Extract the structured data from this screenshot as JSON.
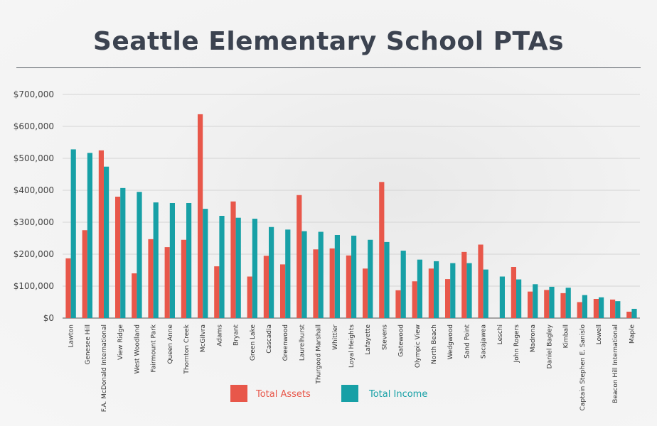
{
  "chart_data": {
    "type": "bar",
    "title": "Seattle Elementary School PTAs",
    "categories": [
      "Lawton",
      "Genesee Hill",
      "F.A. McDonald International",
      "View Ridge",
      "West Woodland",
      "Fairmount Park",
      "Queen Anne",
      "Thornton Creek",
      "McGilvra",
      "Adams",
      "Bryant",
      "Green Lake",
      "Cascadia",
      "Greenwood",
      "Laurelhurst",
      "Thurgood Marshall",
      "Whittier",
      "Loyal Heights",
      "Lafayette",
      "Stevens",
      "Gatewood",
      "Olympic View",
      "North Beach",
      "Wedgwood",
      "Sand Point",
      "Sacajawea",
      "Leschi",
      "John Rogers",
      "Madrona",
      "Daniel Bagley",
      "Kimball",
      "Captain Stephen E. Sanislo",
      "Lowell",
      "Beacon Hill International",
      "Maple"
    ],
    "series": [
      {
        "name": "Total Assets",
        "color": "#e8574a",
        "values": [
          187000,
          275000,
          525000,
          380000,
          140000,
          247000,
          222000,
          245000,
          638000,
          162000,
          365000,
          130000,
          195000,
          168000,
          385000,
          215000,
          218000,
          196000,
          155000,
          426000,
          87000,
          115000,
          155000,
          122000,
          207000,
          230000,
          0,
          160000,
          83000,
          88000,
          78000,
          50000,
          60000,
          58000,
          20000
        ]
      },
      {
        "name": "Total Income",
        "color": "#17a0a6",
        "values": [
          528000,
          517000,
          474000,
          407000,
          395000,
          362000,
          360000,
          360000,
          342000,
          320000,
          314000,
          311000,
          285000,
          277000,
          272000,
          270000,
          260000,
          258000,
          245000,
          238000,
          211000,
          183000,
          178000,
          172000,
          172000,
          152000,
          130000,
          121000,
          106000,
          98000,
          95000,
          72000,
          65000,
          53000,
          29000
        ]
      }
    ],
    "yticks": [
      "$0",
      "$100,000",
      "$200,000",
      "$300,000",
      "$400,000",
      "$500,000",
      "$600,000",
      "$700,000"
    ],
    "ylim": [
      0,
      700000
    ],
    "grid": true,
    "legend": "bottom-center"
  }
}
